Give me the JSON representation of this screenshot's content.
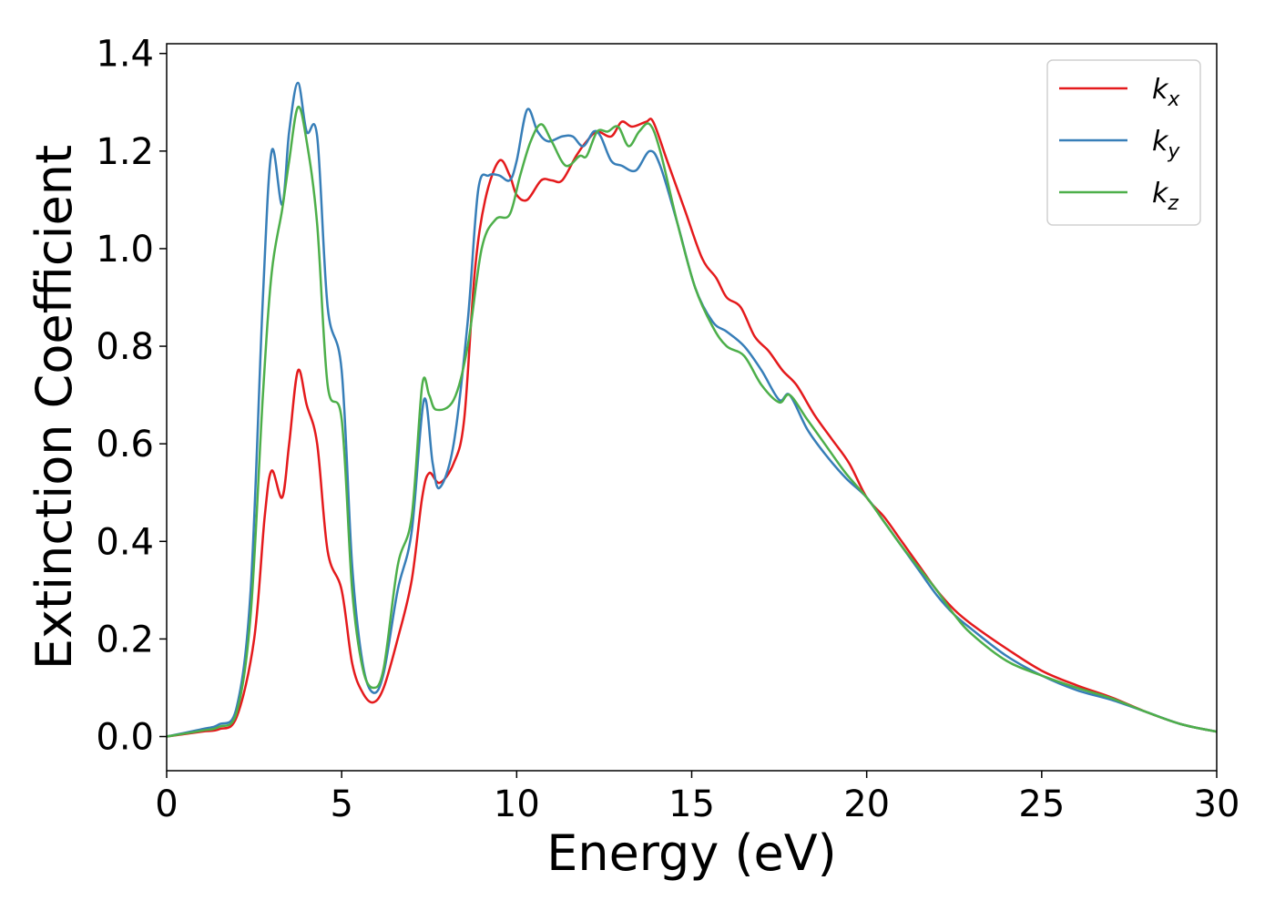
{
  "chart_data": {
    "type": "line",
    "title": "",
    "xlabel": "Energy (eV)",
    "ylabel": "Extinction Coefficient",
    "xlim": [
      0,
      30
    ],
    "ylim": [
      -0.07,
      1.42
    ],
    "xticks": [
      0,
      5,
      10,
      15,
      20,
      25,
      30
    ],
    "xtick_labels": [
      "0",
      "5",
      "10",
      "15",
      "20",
      "25",
      "30"
    ],
    "yticks": [
      0.0,
      0.2,
      0.4,
      0.6,
      0.8,
      1.0,
      1.2,
      1.4
    ],
    "ytick_labels": [
      "0.0",
      "0.2",
      "0.4",
      "0.6",
      "0.8",
      "1.0",
      "1.2",
      "1.4"
    ],
    "grid": false,
    "legend_position": "top-right",
    "series": [
      {
        "name": "k",
        "subscript": "x",
        "color": "#e41a1c",
        "points": [
          [
            0,
            0
          ],
          [
            1,
            0.01
          ],
          [
            1.5,
            0.015
          ],
          [
            2,
            0.04
          ],
          [
            2.5,
            0.2
          ],
          [
            2.8,
            0.45
          ],
          [
            3.0,
            0.545
          ],
          [
            3.3,
            0.49
          ],
          [
            3.5,
            0.6
          ],
          [
            3.75,
            0.75
          ],
          [
            4.0,
            0.68
          ],
          [
            4.3,
            0.6
          ],
          [
            4.6,
            0.38
          ],
          [
            5.0,
            0.3
          ],
          [
            5.3,
            0.15
          ],
          [
            5.6,
            0.09
          ],
          [
            5.9,
            0.07
          ],
          [
            6.2,
            0.1
          ],
          [
            6.6,
            0.2
          ],
          [
            7.0,
            0.32
          ],
          [
            7.3,
            0.49
          ],
          [
            7.5,
            0.54
          ],
          [
            7.8,
            0.52
          ],
          [
            8.2,
            0.56
          ],
          [
            8.5,
            0.65
          ],
          [
            8.8,
            0.95
          ],
          [
            9.1,
            1.1
          ],
          [
            9.5,
            1.18
          ],
          [
            9.8,
            1.15
          ],
          [
            10.0,
            1.11
          ],
          [
            10.3,
            1.1
          ],
          [
            10.7,
            1.14
          ],
          [
            11.0,
            1.14
          ],
          [
            11.3,
            1.14
          ],
          [
            11.7,
            1.19
          ],
          [
            12.0,
            1.22
          ],
          [
            12.3,
            1.24
          ],
          [
            12.7,
            1.23
          ],
          [
            13.0,
            1.26
          ],
          [
            13.3,
            1.25
          ],
          [
            13.7,
            1.26
          ],
          [
            13.9,
            1.26
          ],
          [
            14.3,
            1.18
          ],
          [
            14.8,
            1.08
          ],
          [
            15.3,
            0.98
          ],
          [
            15.7,
            0.94
          ],
          [
            16.0,
            0.9
          ],
          [
            16.4,
            0.88
          ],
          [
            16.8,
            0.82
          ],
          [
            17.2,
            0.79
          ],
          [
            17.6,
            0.75
          ],
          [
            18.0,
            0.72
          ],
          [
            18.5,
            0.66
          ],
          [
            19.0,
            0.61
          ],
          [
            19.5,
            0.56
          ],
          [
            20.0,
            0.49
          ],
          [
            20.5,
            0.45
          ],
          [
            21.0,
            0.4
          ],
          [
            21.5,
            0.35
          ],
          [
            22.0,
            0.3
          ],
          [
            22.5,
            0.26
          ],
          [
            23.0,
            0.23
          ],
          [
            24.0,
            0.18
          ],
          [
            25.0,
            0.135
          ],
          [
            26.0,
            0.105
          ],
          [
            27.0,
            0.08
          ],
          [
            28.0,
            0.05
          ],
          [
            29.0,
            0.025
          ],
          [
            30.0,
            0.01
          ]
        ]
      },
      {
        "name": "k",
        "subscript": "y",
        "color": "#377eb8",
        "points": [
          [
            0,
            0
          ],
          [
            1,
            0.015
          ],
          [
            1.5,
            0.025
          ],
          [
            2,
            0.06
          ],
          [
            2.4,
            0.3
          ],
          [
            2.75,
            0.9
          ],
          [
            3.0,
            1.2
          ],
          [
            3.3,
            1.09
          ],
          [
            3.5,
            1.24
          ],
          [
            3.75,
            1.34
          ],
          [
            4.0,
            1.24
          ],
          [
            4.3,
            1.23
          ],
          [
            4.6,
            0.88
          ],
          [
            5.0,
            0.75
          ],
          [
            5.3,
            0.35
          ],
          [
            5.6,
            0.15
          ],
          [
            5.9,
            0.09
          ],
          [
            6.2,
            0.13
          ],
          [
            6.6,
            0.3
          ],
          [
            7.0,
            0.42
          ],
          [
            7.35,
            0.69
          ],
          [
            7.6,
            0.56
          ],
          [
            7.8,
            0.51
          ],
          [
            8.2,
            0.6
          ],
          [
            8.6,
            0.85
          ],
          [
            8.9,
            1.12
          ],
          [
            9.2,
            1.15
          ],
          [
            9.5,
            1.15
          ],
          [
            9.8,
            1.14
          ],
          [
            10.0,
            1.18
          ],
          [
            10.3,
            1.285
          ],
          [
            10.6,
            1.24
          ],
          [
            10.9,
            1.22
          ],
          [
            11.3,
            1.23
          ],
          [
            11.6,
            1.23
          ],
          [
            11.9,
            1.21
          ],
          [
            12.2,
            1.24
          ],
          [
            12.4,
            1.23
          ],
          [
            12.7,
            1.18
          ],
          [
            13.0,
            1.17
          ],
          [
            13.4,
            1.16
          ],
          [
            13.8,
            1.2
          ],
          [
            14.1,
            1.17
          ],
          [
            14.6,
            1.05
          ],
          [
            15.1,
            0.92
          ],
          [
            15.6,
            0.85
          ],
          [
            16.0,
            0.83
          ],
          [
            16.5,
            0.8
          ],
          [
            17.0,
            0.75
          ],
          [
            17.5,
            0.69
          ],
          [
            17.8,
            0.7
          ],
          [
            18.3,
            0.63
          ],
          [
            18.8,
            0.58
          ],
          [
            19.4,
            0.53
          ],
          [
            20.0,
            0.49
          ],
          [
            20.5,
            0.44
          ],
          [
            21.0,
            0.39
          ],
          [
            21.5,
            0.34
          ],
          [
            22.0,
            0.29
          ],
          [
            22.5,
            0.25
          ],
          [
            23.0,
            0.22
          ],
          [
            24.0,
            0.165
          ],
          [
            25.0,
            0.125
          ],
          [
            26.0,
            0.095
          ],
          [
            27.0,
            0.075
          ],
          [
            28.0,
            0.05
          ],
          [
            29.0,
            0.025
          ],
          [
            30.0,
            0.01
          ]
        ]
      },
      {
        "name": "k",
        "subscript": "z",
        "color": "#4daf4a",
        "points": [
          [
            0,
            0
          ],
          [
            1,
            0.012
          ],
          [
            1.5,
            0.02
          ],
          [
            2,
            0.05
          ],
          [
            2.4,
            0.25
          ],
          [
            2.75,
            0.7
          ],
          [
            3.0,
            0.95
          ],
          [
            3.3,
            1.08
          ],
          [
            3.5,
            1.18
          ],
          [
            3.75,
            1.29
          ],
          [
            4.0,
            1.22
          ],
          [
            4.3,
            1.05
          ],
          [
            4.6,
            0.72
          ],
          [
            5.0,
            0.65
          ],
          [
            5.3,
            0.3
          ],
          [
            5.6,
            0.14
          ],
          [
            5.9,
            0.1
          ],
          [
            6.2,
            0.14
          ],
          [
            6.6,
            0.35
          ],
          [
            7.0,
            0.45
          ],
          [
            7.3,
            0.72
          ],
          [
            7.5,
            0.7
          ],
          [
            7.7,
            0.67
          ],
          [
            8.2,
            0.69
          ],
          [
            8.6,
            0.8
          ],
          [
            9.0,
            1.0
          ],
          [
            9.4,
            1.06
          ],
          [
            9.8,
            1.07
          ],
          [
            10.1,
            1.15
          ],
          [
            10.4,
            1.22
          ],
          [
            10.7,
            1.255
          ],
          [
            11.0,
            1.22
          ],
          [
            11.4,
            1.17
          ],
          [
            11.8,
            1.19
          ],
          [
            12.0,
            1.19
          ],
          [
            12.3,
            1.24
          ],
          [
            12.6,
            1.24
          ],
          [
            12.9,
            1.25
          ],
          [
            13.2,
            1.21
          ],
          [
            13.5,
            1.24
          ],
          [
            13.8,
            1.255
          ],
          [
            14.1,
            1.2
          ],
          [
            14.6,
            1.05
          ],
          [
            15.1,
            0.92
          ],
          [
            15.6,
            0.84
          ],
          [
            16.0,
            0.8
          ],
          [
            16.5,
            0.78
          ],
          [
            17.0,
            0.72
          ],
          [
            17.5,
            0.685
          ],
          [
            17.8,
            0.7
          ],
          [
            18.3,
            0.65
          ],
          [
            18.8,
            0.6
          ],
          [
            19.4,
            0.54
          ],
          [
            20.0,
            0.49
          ],
          [
            20.5,
            0.44
          ],
          [
            21.0,
            0.39
          ],
          [
            21.5,
            0.345
          ],
          [
            22.0,
            0.3
          ],
          [
            22.5,
            0.25
          ],
          [
            23.0,
            0.21
          ],
          [
            24.0,
            0.155
          ],
          [
            25.0,
            0.125
          ],
          [
            26.0,
            0.1
          ],
          [
            27.0,
            0.078
          ],
          [
            28.0,
            0.05
          ],
          [
            29.0,
            0.025
          ],
          [
            30.0,
            0.01
          ]
        ]
      }
    ]
  }
}
